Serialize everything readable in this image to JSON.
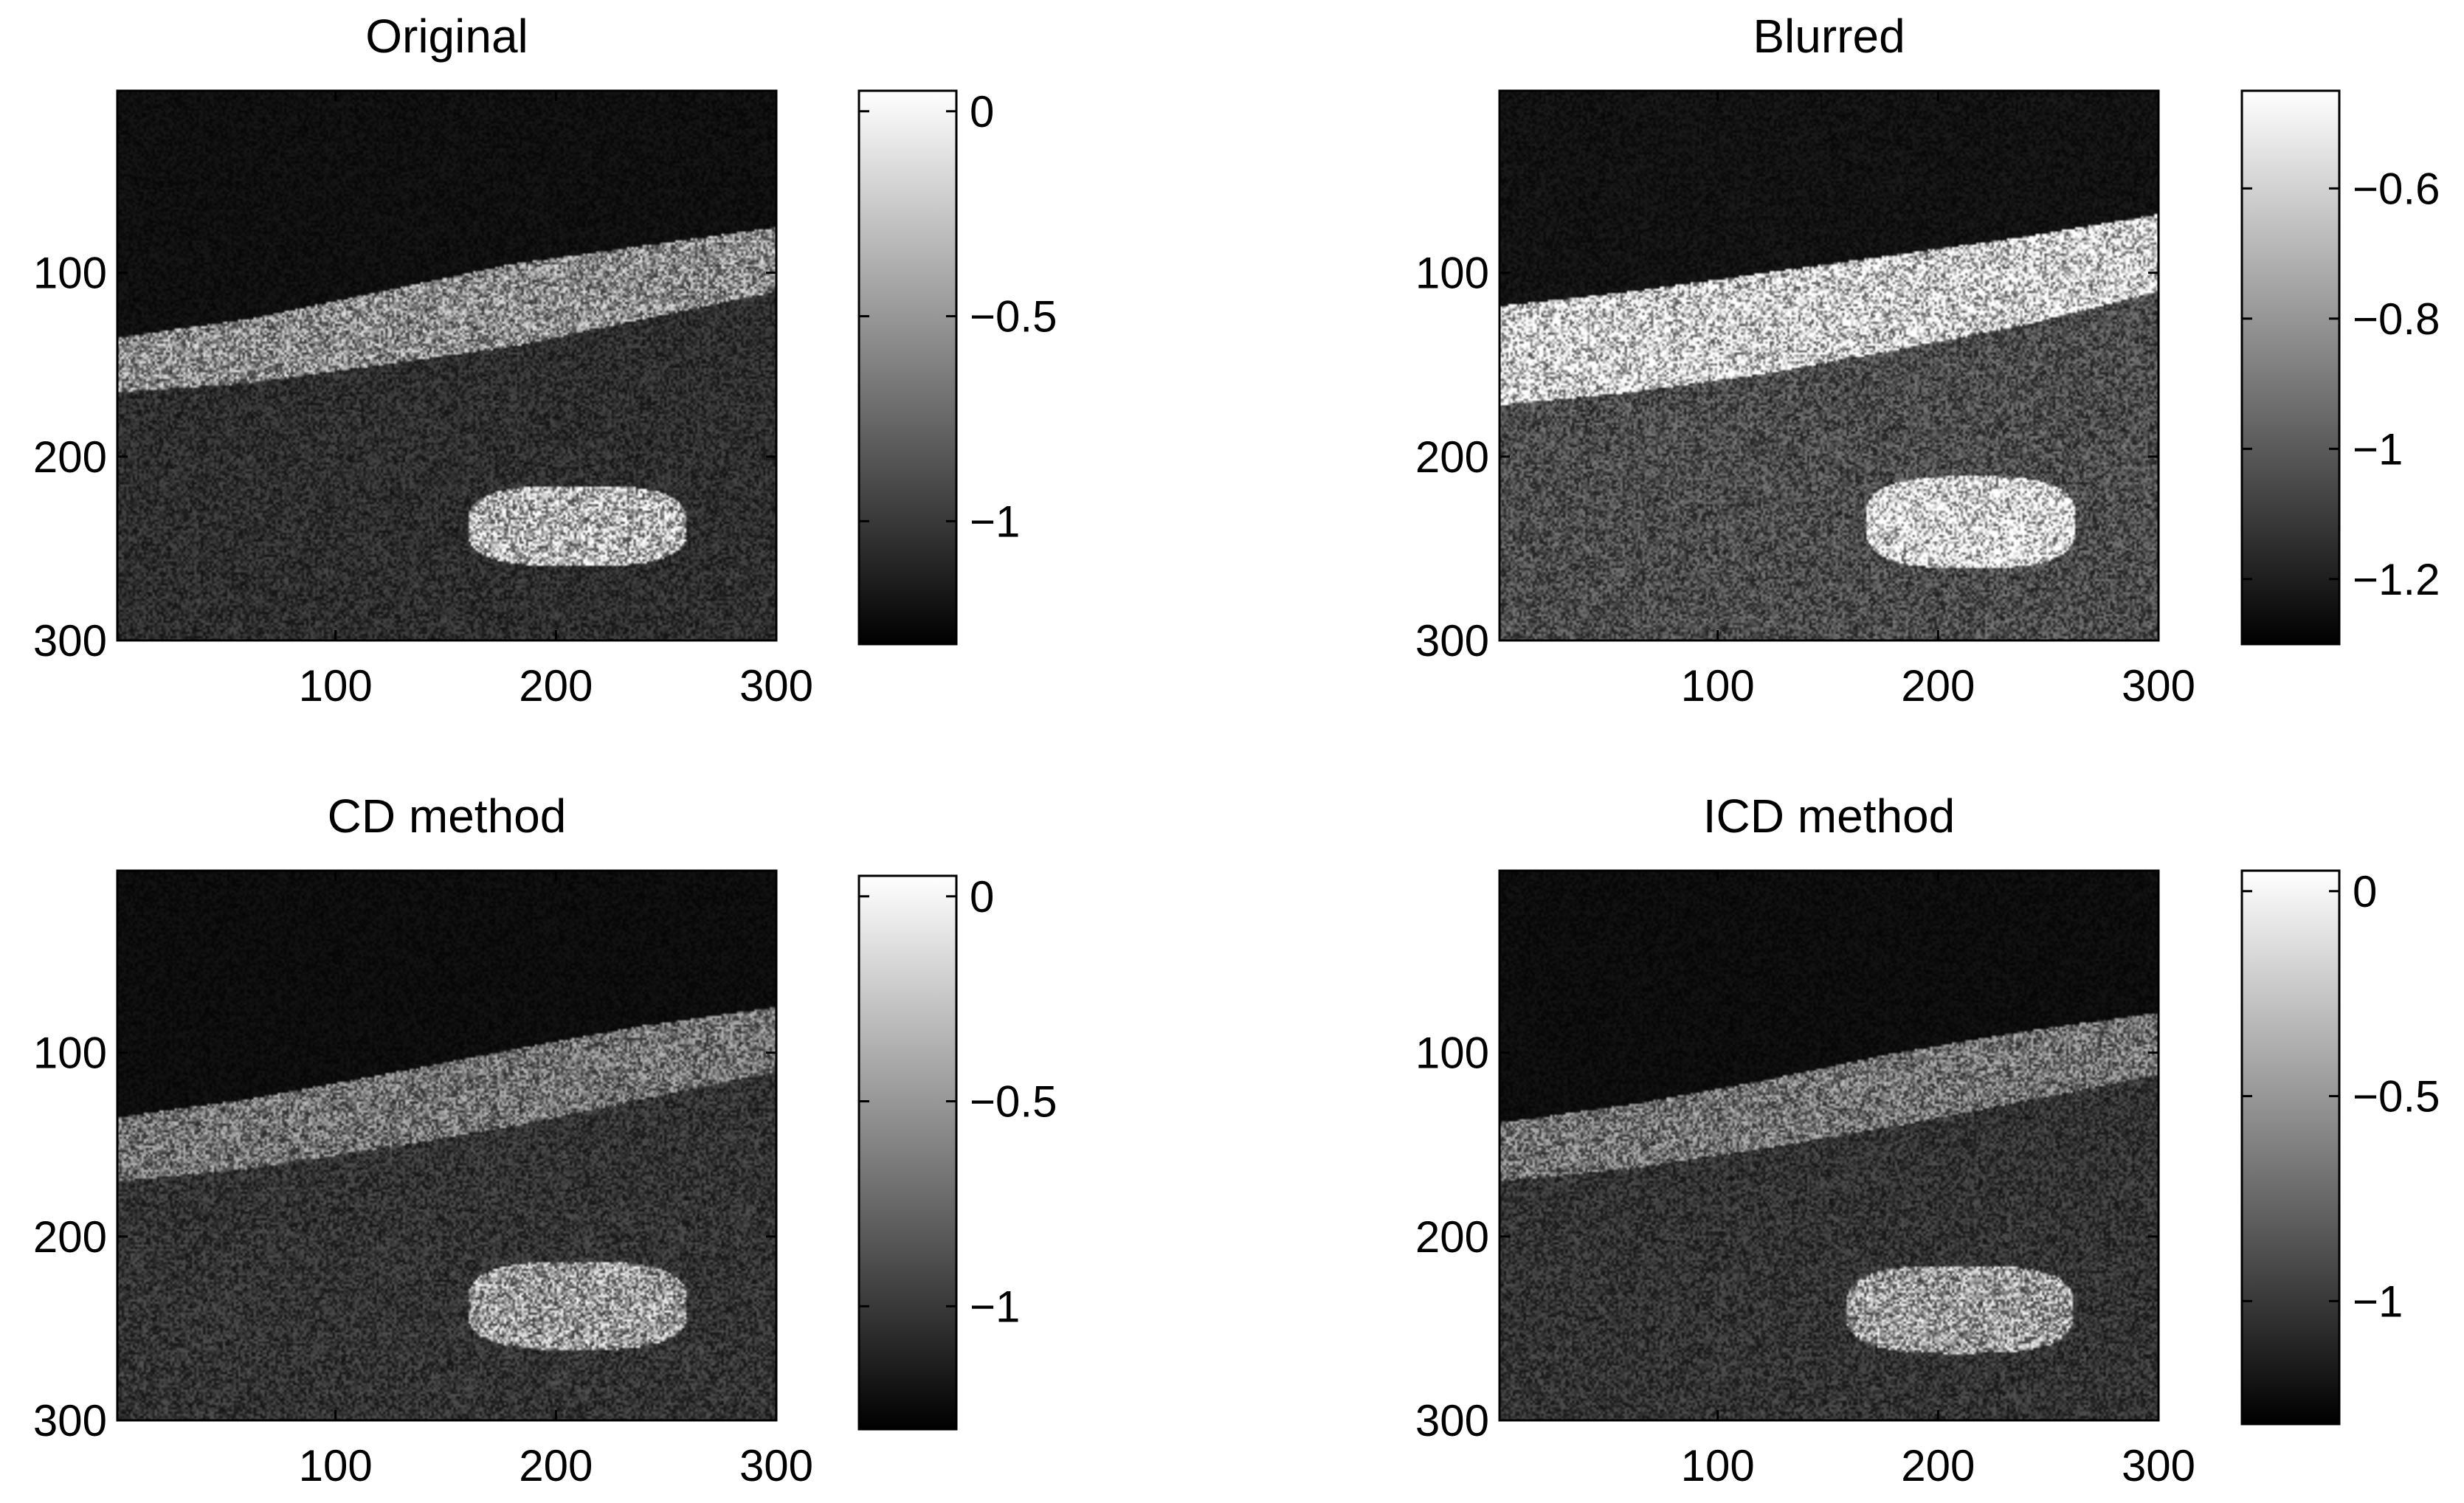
{
  "chart_data": [
    {
      "type": "heatmap",
      "title": "Original",
      "x_ticks": [
        100,
        200,
        300
      ],
      "y_ticks": [
        100,
        200,
        300
      ],
      "xlim": [
        1,
        300
      ],
      "ylim": [
        1,
        300
      ],
      "colormap": "gray",
      "colorbar": {
        "ticks": [
          0,
          -0.5,
          -1
        ],
        "tick_labels": [
          "0",
          "−0.5",
          "−1"
        ],
        "range": [
          -1.3,
          0.05
        ]
      },
      "image": {
        "background": {
          "top_level": 0.06,
          "bottom_level": 0.18
        },
        "band": {
          "x": [
            1,
            300
          ],
          "upper_y": [
            135,
            125,
            110,
            95,
            85,
            75
          ],
          "lower_y": [
            165,
            160,
            150,
            140,
            125,
            110
          ],
          "level": 0.55
        },
        "blob": {
          "center": [
            210,
            238
          ],
          "half_width": 50,
          "half_height": 22,
          "level": 0.7
        }
      }
    },
    {
      "type": "heatmap",
      "title": "Blurred",
      "x_ticks": [
        100,
        200,
        300
      ],
      "y_ticks": [
        100,
        200,
        300
      ],
      "xlim": [
        1,
        300
      ],
      "ylim": [
        1,
        300
      ],
      "colormap": "gray",
      "colorbar": {
        "ticks": [
          -0.6,
          -0.8,
          -1,
          -1.2
        ],
        "tick_labels": [
          "−0.6",
          "−0.8",
          "−1",
          "−1.2"
        ],
        "range": [
          -1.3,
          -0.45
        ]
      },
      "image": {
        "background": {
          "top_level": 0.07,
          "bottom_level": 0.3
        },
        "band": {
          "x": [
            1,
            300
          ],
          "upper_y": [
            118,
            110,
            100,
            90,
            80,
            68
          ],
          "lower_y": [
            172,
            165,
            155,
            142,
            128,
            110
          ],
          "level": 0.85
        },
        "blob": {
          "center": [
            215,
            236
          ],
          "half_width": 48,
          "half_height": 25,
          "level": 0.92
        }
      }
    },
    {
      "type": "heatmap",
      "title": "CD method",
      "x_ticks": [
        100,
        200,
        300
      ],
      "y_ticks": [
        100,
        200,
        300
      ],
      "xlim": [
        1,
        300
      ],
      "ylim": [
        1,
        300
      ],
      "colormap": "gray",
      "colorbar": {
        "ticks": [
          0,
          -0.5,
          -1
        ],
        "tick_labels": [
          "0",
          "−0.5",
          "−1"
        ],
        "range": [
          -1.3,
          0.05
        ]
      },
      "image": {
        "background": {
          "top_level": 0.05,
          "bottom_level": 0.2
        },
        "band": {
          "x": [
            1,
            300
          ],
          "upper_y": [
            135,
            125,
            112,
            98,
            85,
            75
          ],
          "lower_y": [
            170,
            163,
            152,
            140,
            125,
            110
          ],
          "level": 0.45
        },
        "blob": {
          "center": [
            210,
            238
          ],
          "half_width": 50,
          "half_height": 24,
          "level": 0.6
        }
      }
    },
    {
      "type": "heatmap",
      "title": "ICD method",
      "x_ticks": [
        100,
        200,
        300
      ],
      "y_ticks": [
        100,
        200,
        300
      ],
      "xlim": [
        1,
        300
      ],
      "ylim": [
        1,
        300
      ],
      "colormap": "gray",
      "colorbar": {
        "ticks": [
          0,
          -0.5,
          -1
        ],
        "tick_labels": [
          "0",
          "−0.5",
          "−1"
        ],
        "range": [
          -1.3,
          0.05
        ]
      },
      "image": {
        "background": {
          "top_level": 0.05,
          "bottom_level": 0.2
        },
        "band": {
          "x": [
            1,
            300
          ],
          "upper_y": [
            138,
            128,
            115,
            100,
            88,
            78
          ],
          "lower_y": [
            170,
            163,
            152,
            140,
            126,
            112
          ],
          "level": 0.45
        },
        "blob": {
          "center": [
            210,
            240
          ],
          "half_width": 52,
          "half_height": 24,
          "level": 0.6
        }
      }
    }
  ]
}
